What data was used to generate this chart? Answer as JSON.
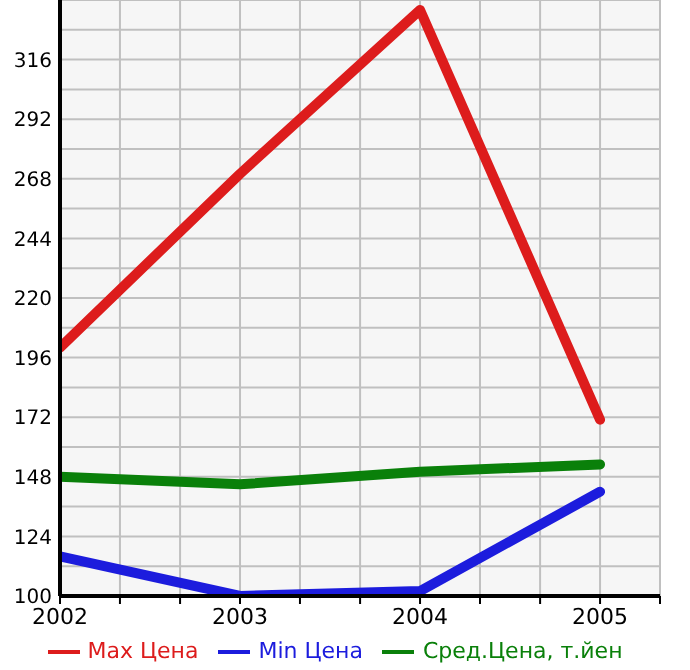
{
  "chart_data": {
    "type": "line",
    "x": [
      2002,
      2003,
      2004,
      2005
    ],
    "series": [
      {
        "name": "Max Цена",
        "color": "#dd1c1c",
        "values": [
          200,
          270,
          336,
          171
        ]
      },
      {
        "name": "Min Цена",
        "color": "#1c1cdd",
        "values": [
          116,
          100,
          102,
          142
        ]
      },
      {
        "name": "Сред.Цена, т.йен",
        "color": "#0a800a",
        "values": [
          148,
          145,
          150,
          153
        ]
      }
    ],
    "xlim": [
      2002,
      2005.333
    ],
    "xticks": [
      2002,
      {
        "value": 2002.333,
        "label": null
      },
      {
        "value": 2002.667,
        "label": null
      },
      2003,
      {
        "value": 2003.333,
        "label": null
      },
      {
        "value": 2003.667,
        "label": null
      },
      2004,
      {
        "value": 2004.333,
        "label": null
      },
      {
        "value": 2004.667,
        "label": null
      },
      2005,
      {
        "value": 2005.333,
        "label": null
      }
    ],
    "ylim": [
      100,
      340
    ],
    "yticks": [
      100,
      {
        "value": 112,
        "label": null
      },
      124,
      {
        "value": 136,
        "label": null
      },
      148,
      {
        "value": 160,
        "label": null
      },
      172,
      {
        "value": 184,
        "label": null
      },
      196,
      {
        "value": 208,
        "label": null
      },
      220,
      {
        "value": 232,
        "label": null
      },
      244,
      {
        "value": 256,
        "label": null
      },
      268,
      {
        "value": 280,
        "label": null
      },
      292,
      {
        "value": 304,
        "label": null
      },
      316,
      {
        "value": 328,
        "label": null
      }
    ],
    "grid": true,
    "legend": "bottom",
    "marker": "none",
    "line_style": "solid"
  }
}
